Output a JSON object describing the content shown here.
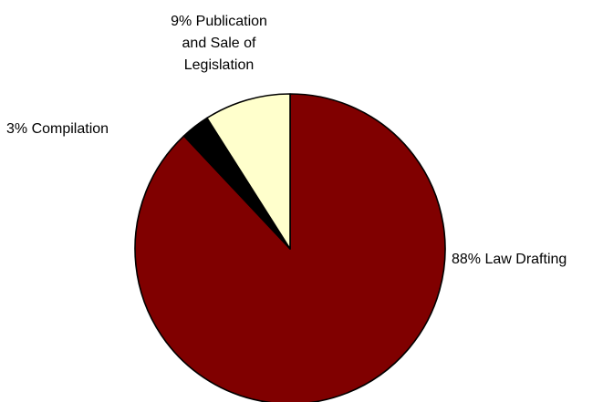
{
  "chart_data": {
    "type": "pie",
    "title": "",
    "slices": [
      {
        "label": "Law Drafting",
        "value": 88,
        "label_lines": [
          "88% Law Drafting"
        ],
        "color": "#800000"
      },
      {
        "label": "Compilation",
        "value": 3,
        "label_lines": [
          "3% Compilation"
        ],
        "color": "#000000"
      },
      {
        "label": "Publication and Sale of Legislation",
        "value": 9,
        "label_lines": [
          "9% Publication",
          "and Sale of",
          "Legislation"
        ],
        "color": "#ffffcc"
      }
    ],
    "start_angle": "12 o'clock",
    "direction": "clockwise",
    "legend": "none"
  }
}
